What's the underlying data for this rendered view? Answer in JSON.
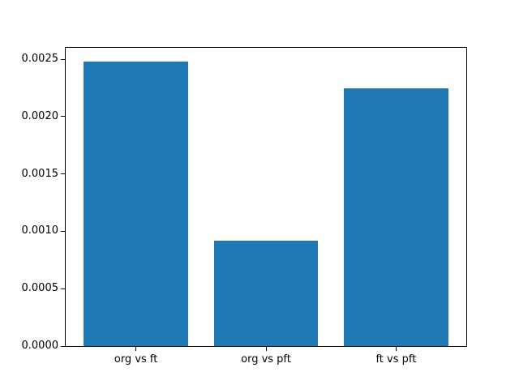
{
  "figure": {
    "background_color": "#ffffff",
    "text_color": "#000000"
  },
  "chart_data": {
    "type": "bar",
    "title": "",
    "xlabel": "",
    "ylabel": "",
    "categories": [
      "org vs ft",
      "org vs pft",
      "ft vs pft"
    ],
    "values": [
      0.00248,
      0.00092,
      0.00225
    ],
    "yticks": [
      0.0,
      0.0005,
      0.001,
      0.0015,
      0.002,
      0.0025
    ],
    "ytick_labels": [
      "0.0000",
      "0.0005",
      "0.0010",
      "0.0015",
      "0.0020",
      "0.0025"
    ],
    "ylim": [
      0,
      0.0026
    ],
    "bar_color": "#1f77b4",
    "axis_color": "#000000",
    "grid": false,
    "legend": false
  }
}
